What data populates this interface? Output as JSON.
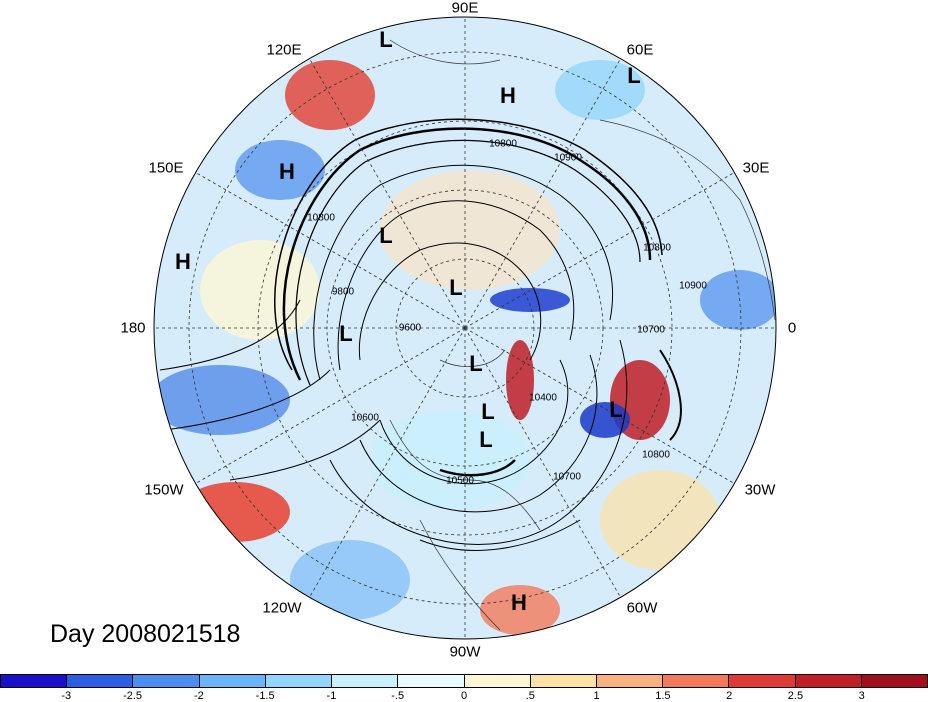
{
  "map": {
    "longitude_labels": [
      "90E",
      "60E",
      "30E",
      "0",
      "30W",
      "60W",
      "90W",
      "120W",
      "150W",
      "180",
      "150E",
      "120E"
    ],
    "pressure_centers": [
      "L",
      "H",
      "L",
      "H",
      "H",
      "L",
      "L",
      "L",
      "L",
      "L",
      "L",
      "L",
      "H"
    ],
    "contour_labels": [
      "10800",
      "10900",
      "10800",
      "10900",
      "10800",
      "9800",
      "9600",
      "10700",
      "10600",
      "10400",
      "10500",
      "10700",
      "10800"
    ]
  },
  "day_label": "Day 2008021518",
  "colorbar": {
    "colors": [
      "#1a10c8",
      "#2b5ee0",
      "#4c8ef0",
      "#6cb4f8",
      "#93d6fb",
      "#c8f0fd",
      "#e8fbfe",
      "#fdf6d5",
      "#fde2a3",
      "#f9b27e",
      "#f27a5b",
      "#e03a36",
      "#c01f27",
      "#a00f1b"
    ],
    "labels": [
      "-3",
      "-2.5",
      "-2",
      "-1.5",
      "-1",
      "-.5",
      "0",
      ".5",
      "1",
      "1.5",
      "2",
      "2.5",
      "3"
    ]
  }
}
